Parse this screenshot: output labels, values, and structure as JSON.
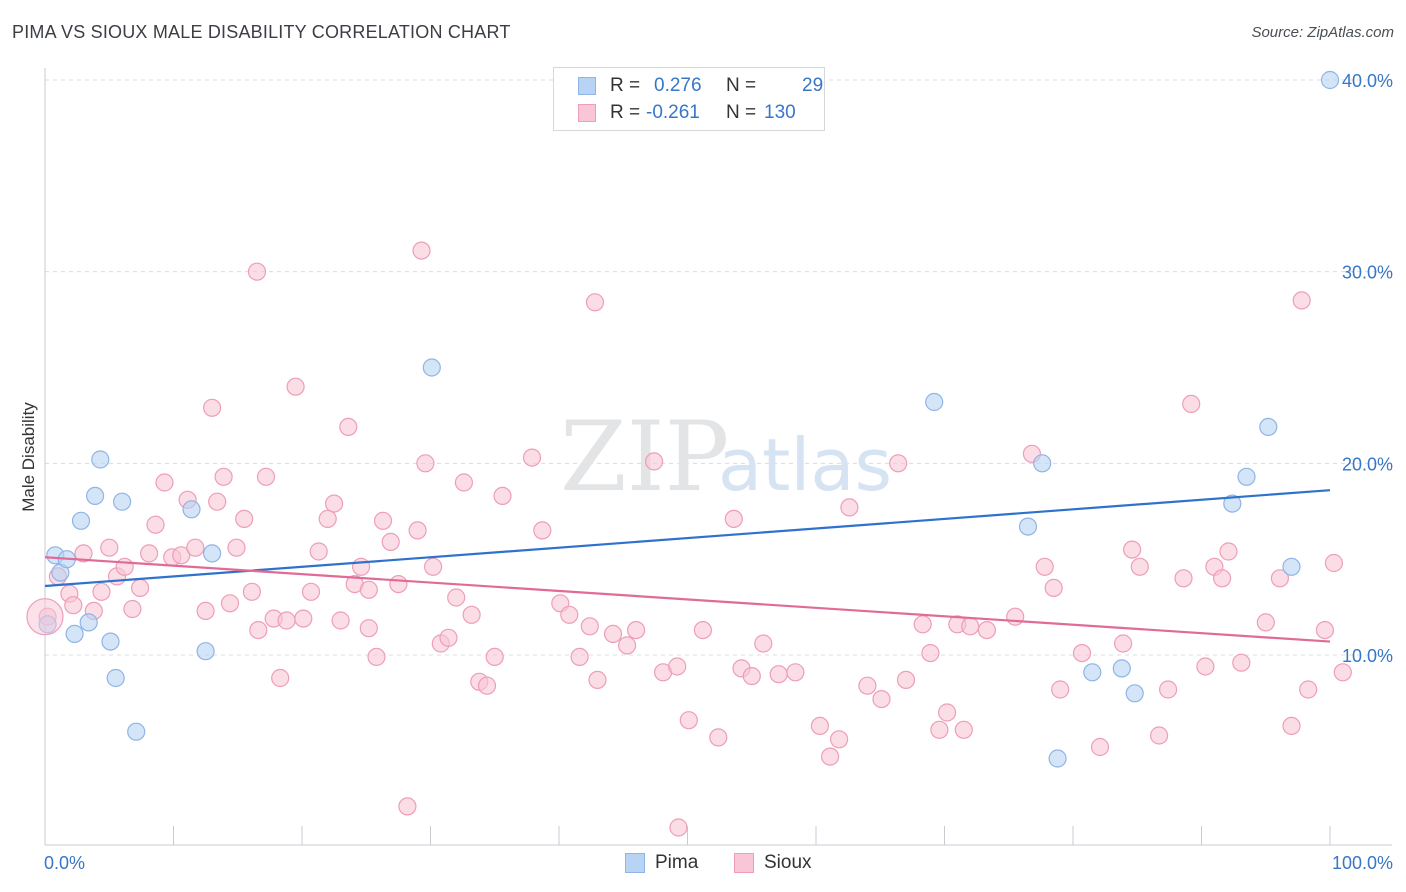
{
  "title": "PIMA VS SIOUX MALE DISABILITY CORRELATION CHART",
  "source": "Source: ZipAtlas.com",
  "watermark": {
    "zip": "ZIP",
    "atlas": "atlas"
  },
  "colors": {
    "pima_fill": "#b9d3f4",
    "pima_stroke": "#8fb4e6",
    "pima_line": "#2f72cc",
    "sioux_fill": "#f8c6d6",
    "sioux_stroke": "#ee9dba",
    "sioux_line": "#e06b98",
    "tick_label": "#3776c8",
    "grid": "#d9dce0"
  },
  "legend": {
    "rows": [
      {
        "series": "Pima",
        "r_label": "R =",
        "r_value": "0.276",
        "n_label": "N =",
        "n_value": "29"
      },
      {
        "series": "Sioux",
        "r_label": "R =",
        "r_value": "-0.261",
        "n_label": "N =",
        "n_value": "130"
      }
    ]
  },
  "bottom_legend": {
    "pima": "Pima",
    "sioux": "Sioux"
  },
  "chart_data": {
    "type": "scatter",
    "title": "PIMA VS SIOUX MALE DISABILITY CORRELATION CHART",
    "xlabel": "",
    "ylabel": "Male Disability",
    "xlim": [
      0,
      100
    ],
    "ylim": [
      0,
      41
    ],
    "x_tick_labels": {
      "min": "0.0%",
      "max": "100.0%"
    },
    "y_ticks": [
      10,
      20,
      30,
      40
    ],
    "y_tick_labels": [
      "10.0%",
      "20.0%",
      "30.0%",
      "40.0%"
    ],
    "series": [
      {
        "name": "Pima",
        "R": 0.276,
        "N": 29,
        "trend": {
          "x": [
            0,
            100
          ],
          "y": [
            13.6,
            18.6
          ]
        },
        "points": [
          [
            0.2,
            11.6
          ],
          [
            0.8,
            15.2
          ],
          [
            1.2,
            14.3
          ],
          [
            1.7,
            15.0
          ],
          [
            2.3,
            11.1
          ],
          [
            2.8,
            17.0
          ],
          [
            3.4,
            11.7
          ],
          [
            3.9,
            18.3
          ],
          [
            4.3,
            20.2
          ],
          [
            5.1,
            10.7
          ],
          [
            5.5,
            8.8
          ],
          [
            6.0,
            18.0
          ],
          [
            7.1,
            6.0
          ],
          [
            11.4,
            17.6
          ],
          [
            12.5,
            10.2
          ],
          [
            13.0,
            15.3
          ],
          [
            30.1,
            25.0
          ],
          [
            69.2,
            23.2
          ],
          [
            76.5,
            16.7
          ],
          [
            77.6,
            20.0
          ],
          [
            78.8,
            4.6
          ],
          [
            81.5,
            9.1
          ],
          [
            83.8,
            9.3
          ],
          [
            84.8,
            8.0
          ],
          [
            92.4,
            17.9
          ],
          [
            93.5,
            19.3
          ],
          [
            95.2,
            21.9
          ],
          [
            97.0,
            14.6
          ],
          [
            100.0,
            40.0
          ]
        ]
      },
      {
        "name": "Sioux",
        "R": -0.261,
        "N": 130,
        "trend": {
          "x": [
            0,
            100
          ],
          "y": [
            15.1,
            10.7
          ]
        },
        "points": [
          [
            0.2,
            12.0
          ],
          [
            1.0,
            14.1
          ],
          [
            1.9,
            13.2
          ],
          [
            2.2,
            12.6
          ],
          [
            3.0,
            15.3
          ],
          [
            3.8,
            12.3
          ],
          [
            4.4,
            13.3
          ],
          [
            5.0,
            15.6
          ],
          [
            5.6,
            14.1
          ],
          [
            6.2,
            14.6
          ],
          [
            6.8,
            12.4
          ],
          [
            7.4,
            13.5
          ],
          [
            8.1,
            15.3
          ],
          [
            8.6,
            16.8
          ],
          [
            9.3,
            19.0
          ],
          [
            9.9,
            15.1
          ],
          [
            10.6,
            15.2
          ],
          [
            11.1,
            18.1
          ],
          [
            11.7,
            15.6
          ],
          [
            12.5,
            12.3
          ],
          [
            13.0,
            22.9
          ],
          [
            13.4,
            18.0
          ],
          [
            13.9,
            19.3
          ],
          [
            14.4,
            12.7
          ],
          [
            14.9,
            15.6
          ],
          [
            15.5,
            17.1
          ],
          [
            16.1,
            13.3
          ],
          [
            16.6,
            11.3
          ],
          [
            17.2,
            19.3
          ],
          [
            17.8,
            11.9
          ],
          [
            18.3,
            8.8
          ],
          [
            18.8,
            11.8
          ],
          [
            19.5,
            24.0
          ],
          [
            20.1,
            11.9
          ],
          [
            20.7,
            13.3
          ],
          [
            21.3,
            15.4
          ],
          [
            22.0,
            17.1
          ],
          [
            22.5,
            17.9
          ],
          [
            23.0,
            11.8
          ],
          [
            23.6,
            21.9
          ],
          [
            24.1,
            13.7
          ],
          [
            24.6,
            14.6
          ],
          [
            25.2,
            13.4
          ],
          [
            25.8,
            9.9
          ],
          [
            26.3,
            17.0
          ],
          [
            26.9,
            15.9
          ],
          [
            27.5,
            13.7
          ],
          [
            28.2,
            2.1
          ],
          [
            29.0,
            16.5
          ],
          [
            29.6,
            20.0
          ],
          [
            30.2,
            14.6
          ],
          [
            30.8,
            10.6
          ],
          [
            31.4,
            10.9
          ],
          [
            32.0,
            13.0
          ],
          [
            32.6,
            19.0
          ],
          [
            33.2,
            12.1
          ],
          [
            33.8,
            8.6
          ],
          [
            34.4,
            8.4
          ],
          [
            35.0,
            9.9
          ],
          [
            35.6,
            18.3
          ],
          [
            16.5,
            30.0
          ],
          [
            29.3,
            31.1
          ],
          [
            42.8,
            28.4
          ],
          [
            37.9,
            20.3
          ],
          [
            38.7,
            16.5
          ],
          [
            40.1,
            12.7
          ],
          [
            40.8,
            12.1
          ],
          [
            41.6,
            9.9
          ],
          [
            42.4,
            11.5
          ],
          [
            43.0,
            8.7
          ],
          [
            44.2,
            11.1
          ],
          [
            45.3,
            10.5
          ],
          [
            46.0,
            11.3
          ],
          [
            47.4,
            20.1
          ],
          [
            48.1,
            9.1
          ],
          [
            49.2,
            9.4
          ],
          [
            50.1,
            6.6
          ],
          [
            51.2,
            11.3
          ],
          [
            52.4,
            5.7
          ],
          [
            53.6,
            17.1
          ],
          [
            54.2,
            9.3
          ],
          [
            55.0,
            8.9
          ],
          [
            55.9,
            10.6
          ],
          [
            57.1,
            9.0
          ],
          [
            58.4,
            9.1
          ],
          [
            60.3,
            6.3
          ],
          [
            61.1,
            4.7
          ],
          [
            61.8,
            5.6
          ],
          [
            62.6,
            17.7
          ],
          [
            64.0,
            8.4
          ],
          [
            65.1,
            7.7
          ],
          [
            66.4,
            20.0
          ],
          [
            67.0,
            8.7
          ],
          [
            68.3,
            11.6
          ],
          [
            68.9,
            10.1
          ],
          [
            70.2,
            7.0
          ],
          [
            71.0,
            11.6
          ],
          [
            71.5,
            6.1
          ],
          [
            72.0,
            11.5
          ],
          [
            73.3,
            11.3
          ],
          [
            75.5,
            12.0
          ],
          [
            76.8,
            20.5
          ],
          [
            77.8,
            14.6
          ],
          [
            78.5,
            13.5
          ],
          [
            79.0,
            8.2
          ],
          [
            80.7,
            10.1
          ],
          [
            82.1,
            5.2
          ],
          [
            83.9,
            10.6
          ],
          [
            84.6,
            15.5
          ],
          [
            85.2,
            14.6
          ],
          [
            86.7,
            5.8
          ],
          [
            87.4,
            8.2
          ],
          [
            88.6,
            14.0
          ],
          [
            89.2,
            23.1
          ],
          [
            90.3,
            9.4
          ],
          [
            91.0,
            14.6
          ],
          [
            91.6,
            14.0
          ],
          [
            92.1,
            15.4
          ],
          [
            93.1,
            9.6
          ],
          [
            95.0,
            11.7
          ],
          [
            96.1,
            14.0
          ],
          [
            97.0,
            6.3
          ],
          [
            98.3,
            8.2
          ],
          [
            99.6,
            11.3
          ],
          [
            100.3,
            14.8
          ],
          [
            97.8,
            28.5
          ],
          [
            101.0,
            9.1
          ],
          [
            49.3,
            1.0
          ],
          [
            25.2,
            11.4
          ],
          [
            69.6,
            6.1
          ]
        ]
      }
    ],
    "legend_position": "top-center"
  }
}
